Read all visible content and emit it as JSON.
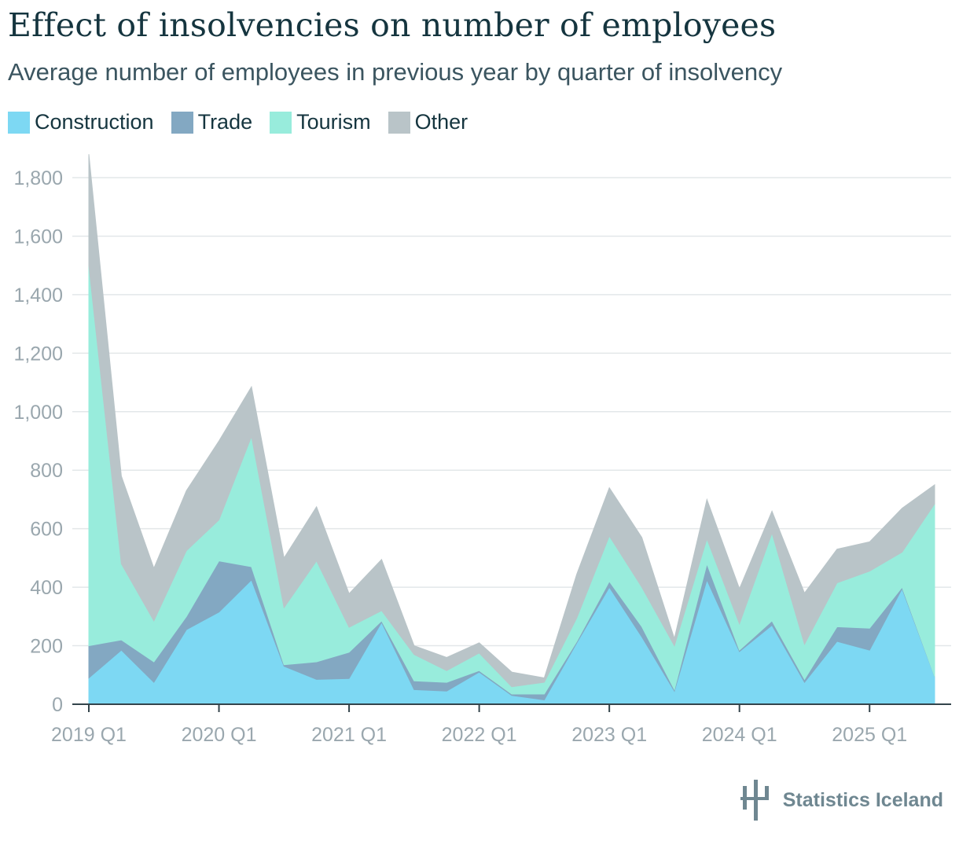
{
  "title": "Effect of insolvencies on number of employees",
  "subtitle": "Average number of employees in previous year by quarter of insolvency",
  "legend": [
    {
      "name": "Construction",
      "color": "#7dd8f3"
    },
    {
      "name": "Trade",
      "color": "#83a8c2"
    },
    {
      "name": "Tourism",
      "color": "#98ecdc"
    },
    {
      "name": "Other",
      "color": "#b9c4c8"
    }
  ],
  "branding": {
    "label": "Statistics Iceland"
  },
  "chart_data": {
    "type": "area",
    "stacked": true,
    "ylim": [
      0,
      1800
    ],
    "yticks": [
      0,
      200,
      400,
      600,
      800,
      1000,
      1200,
      1400,
      1600,
      1800
    ],
    "ytick_labels": [
      "0",
      "200",
      "400",
      "600",
      "800",
      "1,000",
      "1,200",
      "1,400",
      "1,600",
      "1,800"
    ],
    "xtick_labels": [
      "2019 Q1",
      "2020 Q1",
      "2021 Q1",
      "2022 Q1",
      "2023 Q1",
      "2024 Q1",
      "2025 Q1"
    ],
    "x": [
      "2019 Q1",
      "2019 Q2",
      "2019 Q3",
      "2019 Q4",
      "2020 Q1",
      "2020 Q2",
      "2020 Q3",
      "2020 Q4",
      "2021 Q1",
      "2021 Q2",
      "2021 Q3",
      "2021 Q4",
      "2022 Q1",
      "2022 Q2",
      "2022 Q3",
      "2022 Q4",
      "2023 Q1",
      "2023 Q2",
      "2023 Q3",
      "2023 Q4",
      "2024 Q1",
      "2024 Q2",
      "2024 Q3",
      "2024 Q4",
      "2025 Q1",
      "2025 Q2",
      "2025 Q3"
    ],
    "grid": true,
    "legend_position": "top-left",
    "series": [
      {
        "name": "Construction",
        "color": "#7dd8f3",
        "values": [
          90,
          185,
          75,
          255,
          315,
          425,
          130,
          85,
          88,
          280,
          50,
          45,
          110,
          30,
          15,
          210,
          400,
          230,
          45,
          425,
          180,
          270,
          75,
          215,
          185,
          395,
          95
        ]
      },
      {
        "name": "Trade",
        "color": "#83a8c2",
        "values": [
          110,
          35,
          70,
          45,
          175,
          45,
          5,
          60,
          90,
          5,
          30,
          30,
          5,
          5,
          20,
          5,
          20,
          35,
          5,
          55,
          5,
          15,
          10,
          50,
          75,
          5,
          0
        ]
      },
      {
        "name": "Tourism",
        "color": "#98ecdc",
        "values": [
          1300,
          260,
          140,
          225,
          140,
          445,
          195,
          345,
          85,
          35,
          90,
          40,
          60,
          25,
          40,
          80,
          155,
          135,
          150,
          85,
          90,
          300,
          120,
          150,
          195,
          120,
          590
        ]
      },
      {
        "name": "Other",
        "color": "#b9c4c8",
        "values": [
          380,
          300,
          180,
          205,
          270,
          170,
          170,
          185,
          115,
          175,
          30,
          45,
          35,
          50,
          15,
          150,
          165,
          170,
          25,
          135,
          120,
          75,
          175,
          115,
          100,
          150,
          65
        ]
      }
    ]
  }
}
